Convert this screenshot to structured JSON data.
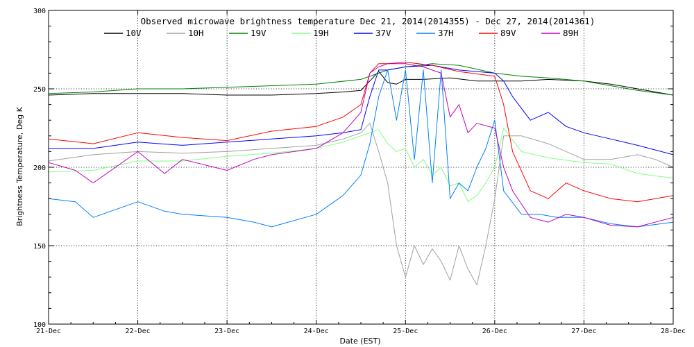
{
  "chart_data": {
    "type": "line",
    "title": "Observed microwave brightness temperature Dec 21, 2014(2014355) - Dec 27, 2014(2014361)",
    "xlabel": "Date (EST)",
    "ylabel": "Brightness Temperature, Deg K",
    "xlim": [
      0,
      7
    ],
    "ylim": [
      100,
      300
    ],
    "grid": true,
    "legend_position": "top",
    "x_ticks": [
      {
        "x": 0,
        "label": "21-Dec"
      },
      {
        "x": 1,
        "label": "22-Dec"
      },
      {
        "x": 2,
        "label": "23-Dec"
      },
      {
        "x": 3,
        "label": "24-Dec"
      },
      {
        "x": 4,
        "label": "25-Dec"
      },
      {
        "x": 5,
        "label": "26-Dec"
      },
      {
        "x": 6,
        "label": "27-Dec"
      },
      {
        "x": 7,
        "label": "28-Dec"
      }
    ],
    "y_ticks": [
      {
        "y": 100,
        "label": "100"
      },
      {
        "y": 150,
        "label": "150"
      },
      {
        "y": 200,
        "label": "200"
      },
      {
        "y": 250,
        "label": "250"
      },
      {
        "y": 300,
        "label": "300"
      }
    ],
    "series": [
      {
        "name": "10V",
        "color": "#000000",
        "x": [
          0,
          0.5,
          1,
          1.5,
          2,
          2.5,
          3,
          3.3,
          3.5,
          3.6,
          3.7,
          3.8,
          3.9,
          4.0,
          4.2,
          4.5,
          4.8,
          5.0,
          5.3,
          5.6,
          6.0,
          6.3,
          6.6,
          7.0
        ],
        "y": [
          246,
          247,
          247,
          247,
          246,
          246,
          247,
          248,
          249,
          255,
          261,
          254,
          253,
          256,
          256,
          257,
          255,
          255,
          255,
          256,
          255,
          253,
          250,
          246
        ]
      },
      {
        "name": "10H",
        "color": "#a0a0a0",
        "x": [
          0,
          0.5,
          1,
          1.5,
          2,
          2.5,
          3,
          3.3,
          3.5,
          3.6,
          3.7,
          3.8,
          3.9,
          4.0,
          4.1,
          4.2,
          4.3,
          4.4,
          4.5,
          4.6,
          4.7,
          4.8,
          4.9,
          5.0,
          5.1,
          5.3,
          5.6,
          6.0,
          6.3,
          6.6,
          6.8,
          7.0
        ],
        "y": [
          204,
          208,
          210,
          209,
          210,
          212,
          214,
          218,
          222,
          228,
          210,
          190,
          150,
          130,
          150,
          138,
          148,
          140,
          128,
          150,
          135,
          125,
          150,
          180,
          220,
          220,
          215,
          205,
          205,
          208,
          205,
          200
        ]
      },
      {
        "name": "19V",
        "color": "#008000",
        "x": [
          0,
          0.5,
          1,
          1.5,
          2,
          2.5,
          3,
          3.5,
          3.8,
          4.0,
          4.3,
          4.6,
          5.0,
          5.3,
          5.6,
          6.0,
          6.3,
          6.6,
          7.0
        ],
        "y": [
          247,
          248,
          250,
          250,
          251,
          252,
          253,
          256,
          262,
          264,
          266,
          265,
          260,
          258,
          257,
          255,
          252,
          249,
          246
        ]
      },
      {
        "name": "19H",
        "color": "#80ff80",
        "x": [
          0,
          0.5,
          1,
          1.5,
          2,
          2.5,
          3,
          3.3,
          3.5,
          3.7,
          3.8,
          3.9,
          4.0,
          4.1,
          4.2,
          4.3,
          4.4,
          4.5,
          4.6,
          4.7,
          4.8,
          4.9,
          5.0,
          5.1,
          5.3,
          5.6,
          6.0,
          6.3,
          6.6,
          7.0
        ],
        "y": [
          197,
          198,
          204,
          204,
          207,
          209,
          212,
          216,
          220,
          224,
          215,
          210,
          212,
          200,
          205,
          195,
          200,
          188,
          190,
          178,
          182,
          190,
          200,
          225,
          210,
          206,
          203,
          202,
          196,
          193
        ]
      },
      {
        "name": "37V",
        "color": "#0000ff",
        "x": [
          0,
          0.5,
          1,
          1.5,
          2,
          2.5,
          3,
          3.3,
          3.5,
          3.6,
          3.7,
          3.8,
          4.0,
          4.3,
          4.6,
          5.0,
          5.1,
          5.2,
          5.4,
          5.6,
          5.8,
          6.0,
          6.3,
          6.6,
          7.0
        ],
        "y": [
          212,
          212,
          216,
          214,
          216,
          218,
          220,
          222,
          224,
          245,
          262,
          262,
          264,
          265,
          262,
          260,
          255,
          245,
          230,
          235,
          226,
          222,
          218,
          214,
          208
        ]
      },
      {
        "name": "37H",
        "color": "#0080ff",
        "x": [
          0,
          0.3,
          0.5,
          1,
          1.3,
          1.5,
          2,
          2.3,
          2.5,
          3,
          3.3,
          3.5,
          3.6,
          3.7,
          3.8,
          3.9,
          4.0,
          4.1,
          4.2,
          4.3,
          4.4,
          4.5,
          4.6,
          4.7,
          4.8,
          4.9,
          5.0,
          5.1,
          5.3,
          5.5,
          5.7,
          6.0,
          6.3,
          6.6,
          7.0
        ],
        "y": [
          180,
          178,
          168,
          178,
          172,
          170,
          168,
          165,
          162,
          170,
          182,
          195,
          215,
          245,
          262,
          230,
          262,
          205,
          262,
          190,
          262,
          180,
          190,
          185,
          200,
          212,
          230,
          185,
          170,
          170,
          168,
          168,
          164,
          162,
          165
        ]
      },
      {
        "name": "89V",
        "color": "#ff0000",
        "x": [
          0,
          0.5,
          1,
          1.5,
          2,
          2.5,
          3,
          3.3,
          3.5,
          3.6,
          3.7,
          3.8,
          4.0,
          4.3,
          4.6,
          5.0,
          5.1,
          5.2,
          5.4,
          5.6,
          5.8,
          6.0,
          6.3,
          6.6,
          7.0
        ],
        "y": [
          218,
          215,
          222,
          219,
          217,
          223,
          226,
          232,
          240,
          260,
          266,
          266,
          267,
          265,
          261,
          258,
          240,
          210,
          185,
          180,
          190,
          185,
          180,
          178,
          182
        ]
      },
      {
        "name": "89H",
        "color": "#c000c0",
        "x": [
          0,
          0.3,
          0.5,
          1,
          1.3,
          1.5,
          2,
          2.3,
          2.5,
          3,
          3.3,
          3.5,
          3.6,
          3.7,
          3.8,
          4.0,
          4.2,
          4.4,
          4.5,
          4.6,
          4.7,
          4.8,
          5.0,
          5.1,
          5.2,
          5.4,
          5.6,
          5.8,
          6.0,
          6.3,
          6.6,
          7.0
        ],
        "y": [
          203,
          198,
          190,
          210,
          196,
          205,
          198,
          205,
          208,
          212,
          222,
          235,
          260,
          264,
          266,
          266,
          264,
          260,
          232,
          240,
          222,
          228,
          225,
          200,
          185,
          168,
          165,
          170,
          168,
          163,
          162,
          168
        ]
      }
    ]
  }
}
